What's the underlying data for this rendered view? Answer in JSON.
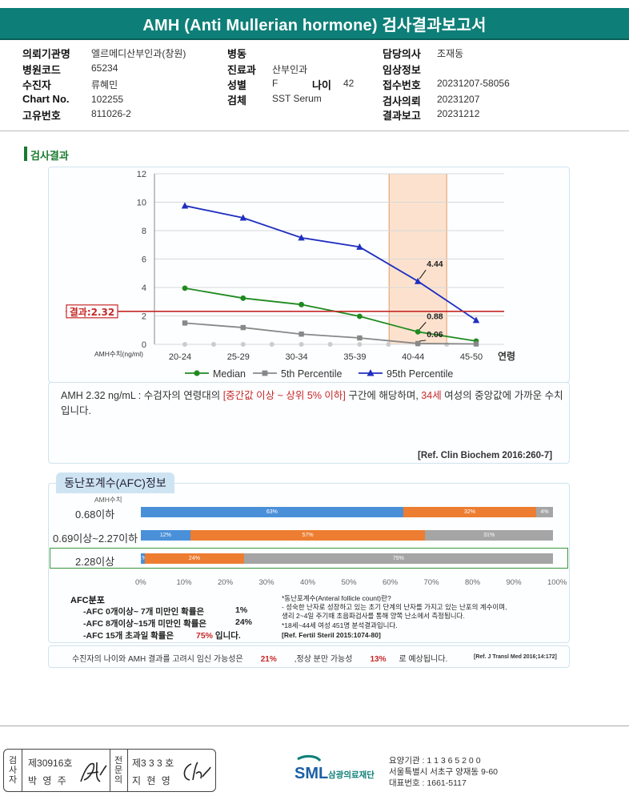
{
  "title": "AMH (Anti Mullerian hormone) 검사결과보고서",
  "header": {
    "col1": [
      {
        "label": "의뢰기관명",
        "value": "엘르메디산부인과(창원)"
      },
      {
        "label": "병원코드",
        "value": "65234"
      },
      {
        "label": "수진자",
        "value": "류혜민"
      },
      {
        "label": "Chart No.",
        "value": "102255"
      },
      {
        "label": "고유번호",
        "value": "811026-2"
      }
    ],
    "col2": [
      {
        "label": "병동",
        "value": ""
      },
      {
        "label": "진료과",
        "value": "산부인과"
      },
      {
        "label": "성별",
        "value": "F"
      },
      {
        "label": "검체",
        "value": "SST Serum"
      }
    ],
    "age_label": "나이",
    "age_value": "42",
    "col3": [
      {
        "label": "담당의사",
        "value": "조재동"
      },
      {
        "label": "임상정보",
        "value": ""
      },
      {
        "label": "접수번호",
        "value": "20231207-58056"
      },
      {
        "label": "검사의뢰",
        "value": "20231207"
      },
      {
        "label": "결과보고",
        "value": "20231212"
      }
    ]
  },
  "section_title": "검사결과",
  "chart_data": {
    "type": "line",
    "categories": [
      "20-24",
      "25-29",
      "30-34",
      "35-39",
      "40-44",
      "45-50"
    ],
    "x_axis_end_label": "연령",
    "ylabel": "AMH수치(ng/ml)",
    "ylim": [
      0,
      12
    ],
    "yticks": [
      0,
      2,
      4,
      6,
      8,
      10,
      12
    ],
    "grid": true,
    "legend_position": "bottom",
    "series": [
      {
        "name": "Median",
        "color": "#1f8a1f",
        "marker": "circle",
        "values": [
          3.95,
          3.25,
          2.8,
          1.97,
          0.88,
          0.23
        ]
      },
      {
        "name": "5th Percentile",
        "color": "#888888",
        "marker": "square",
        "values": [
          1.5,
          1.18,
          0.72,
          0.45,
          0.06,
          0.03
        ]
      },
      {
        "name": "95th Percentile",
        "color": "#1f2fbf",
        "marker": "triangle",
        "values": [
          9.75,
          8.9,
          7.5,
          6.85,
          4.44,
          1.7
        ]
      }
    ],
    "annotations": [
      {
        "text": "4.44",
        "x": "40-44",
        "y": 4.44
      },
      {
        "text": "0.88",
        "x": "40-44",
        "y": 0.88
      },
      {
        "text": "0.06",
        "x": "40-44",
        "y": 0.06
      }
    ],
    "result_line": {
      "label": "결과:2.32",
      "value": 2.32,
      "color": "#c62828"
    },
    "highlight_category": "40-44"
  },
  "description": {
    "part1": "AMH  2.32 ng/mL : 수검자의 연령대의 ",
    "part2": "[중간값 이상 ~ 상위 5% 이하]",
    "part3": "  구간에 해당하며, ",
    "part4": "34세",
    "part5": " 여성의 중앙값에 가까운 수치입니다.",
    "ref": "[Ref. Clin Biochem 2016:260-7]"
  },
  "afc": {
    "tab_title": "동난포계수(AFC)정보",
    "y_label": "AMH수치",
    "colors": {
      "low": "#4a90d9",
      "mid": "#ed7d31",
      "high": "#a5a5a5"
    },
    "rows": [
      {
        "label": "0.68이하",
        "segments": [
          63,
          32,
          4
        ],
        "seg_labels": [
          "63%",
          "32%",
          "4%"
        ]
      },
      {
        "label": "0.69이상~2.27이하",
        "segments": [
          12,
          57,
          31
        ],
        "seg_labels": [
          "12%",
          "57%",
          "31%"
        ]
      },
      {
        "label": "2.28이상",
        "segments": [
          1,
          24,
          75
        ],
        "seg_labels": [
          "1%",
          "24%",
          "75%"
        ]
      }
    ],
    "highlight_row": 2,
    "x_ticks": [
      "0%",
      "10%",
      "20%",
      "30%",
      "40%",
      "50%",
      "60%",
      "70%",
      "80%",
      "90%",
      "100%"
    ],
    "dist_title": "AFC분포",
    "dist": [
      {
        "text": "-AFC  0개이상~ 7개 미만인 확률은",
        "value": "1%",
        "suffix": ""
      },
      {
        "text": "-AFC  8개이상~15개 미만인 확률은",
        "value": "24%",
        "suffix": ""
      },
      {
        "text": "-AFC  15개 초과일 확률은",
        "value": "75%",
        "suffix": " 입니다."
      }
    ],
    "info": {
      "title": "*동난포계수(Anteral follicle count)란?",
      "line1": "- 성숙한 난자로 성장하고 있는 초기 단계의 난자를 가지고 있는 난포의 계수이며,",
      "line2": "   생리 2~4일 주기때 초음파검사를 통해 양쪽 난소에서 측정됩니다.",
      "line3": "*18세~44세 여성 451명 분석결과입니다.",
      "ref": "[Ref. Fertil Steril 2015:1074-80]"
    }
  },
  "bottom": {
    "t1": "수진자의  나이와 AMH 결과를 고려시 임신 가능성은",
    "v1": "21%",
    "t2": ",정상 분만 가능성",
    "v2": "13%",
    "t3": "로 예상됩니다.",
    "ref": "[Ref. J Transl Med 2016;14:172]"
  },
  "footer": {
    "box1_label": "검사자",
    "box1_no": "제30916호",
    "box1_name": "박 영 주",
    "box2_label": "전문의",
    "box2_no": "제3 3 3 호",
    "box2_name": "지 현 영",
    "logo_text": "SML",
    "org_name": "삼광의료재단",
    "info1": "요양기관 : 1 1 3 6 5 2 0 0",
    "info2": "서울특별시 서초구 양재동 9-60",
    "info3": "대표번호 : 1661-5117"
  }
}
